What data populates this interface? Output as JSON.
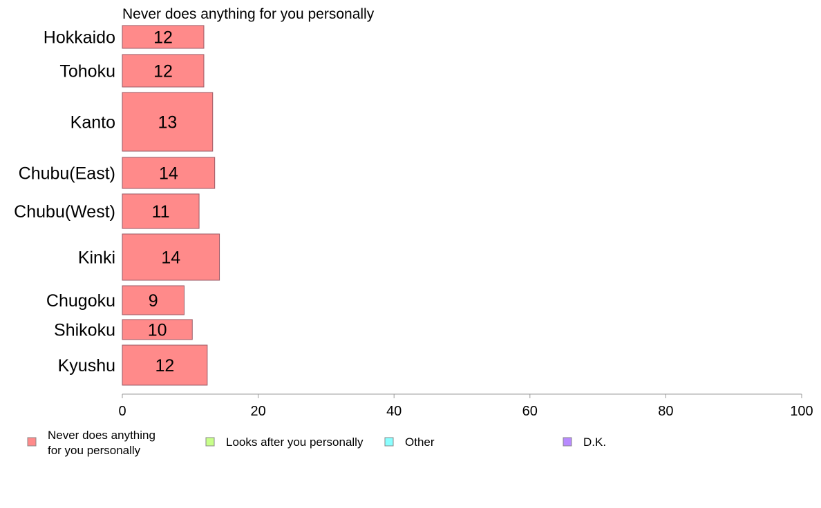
{
  "chart_data": {
    "type": "bar",
    "orientation": "horizontal",
    "title": "Never does anything for you personally",
    "xlabel": "",
    "ylabel": "",
    "xlim": [
      0,
      100
    ],
    "x_ticks": [
      0,
      20,
      40,
      60,
      80,
      100
    ],
    "grid": false,
    "categories": [
      "Hokkaido",
      "Tohoku",
      "Kanto",
      "Chubu(East)",
      "Chubu(West)",
      "Kinki",
      "Chugoku",
      "Shikoku",
      "Kyushu"
    ],
    "series": [
      {
        "name": "Never does anything for you personally",
        "color": "#ff8a8a",
        "values": [
          12,
          12,
          13.3,
          13.6,
          11.3,
          14.3,
          9.1,
          10.3,
          12.5
        ],
        "labels": [
          "12",
          "12",
          "13",
          "14",
          "11",
          "14",
          "9",
          "10",
          "12"
        ]
      }
    ],
    "legend": {
      "placement": "bottom",
      "items": [
        {
          "label_lines": [
            "Never does anything",
            "for you personally"
          ],
          "color": "#ff8a8a"
        },
        {
          "label_lines": [
            "Looks after you personally"
          ],
          "color": "#c8ff8a"
        },
        {
          "label_lines": [
            "Other"
          ],
          "color": "#8affff"
        },
        {
          "label_lines": [
            "D.K."
          ],
          "color": "#b88aff"
        }
      ]
    }
  }
}
